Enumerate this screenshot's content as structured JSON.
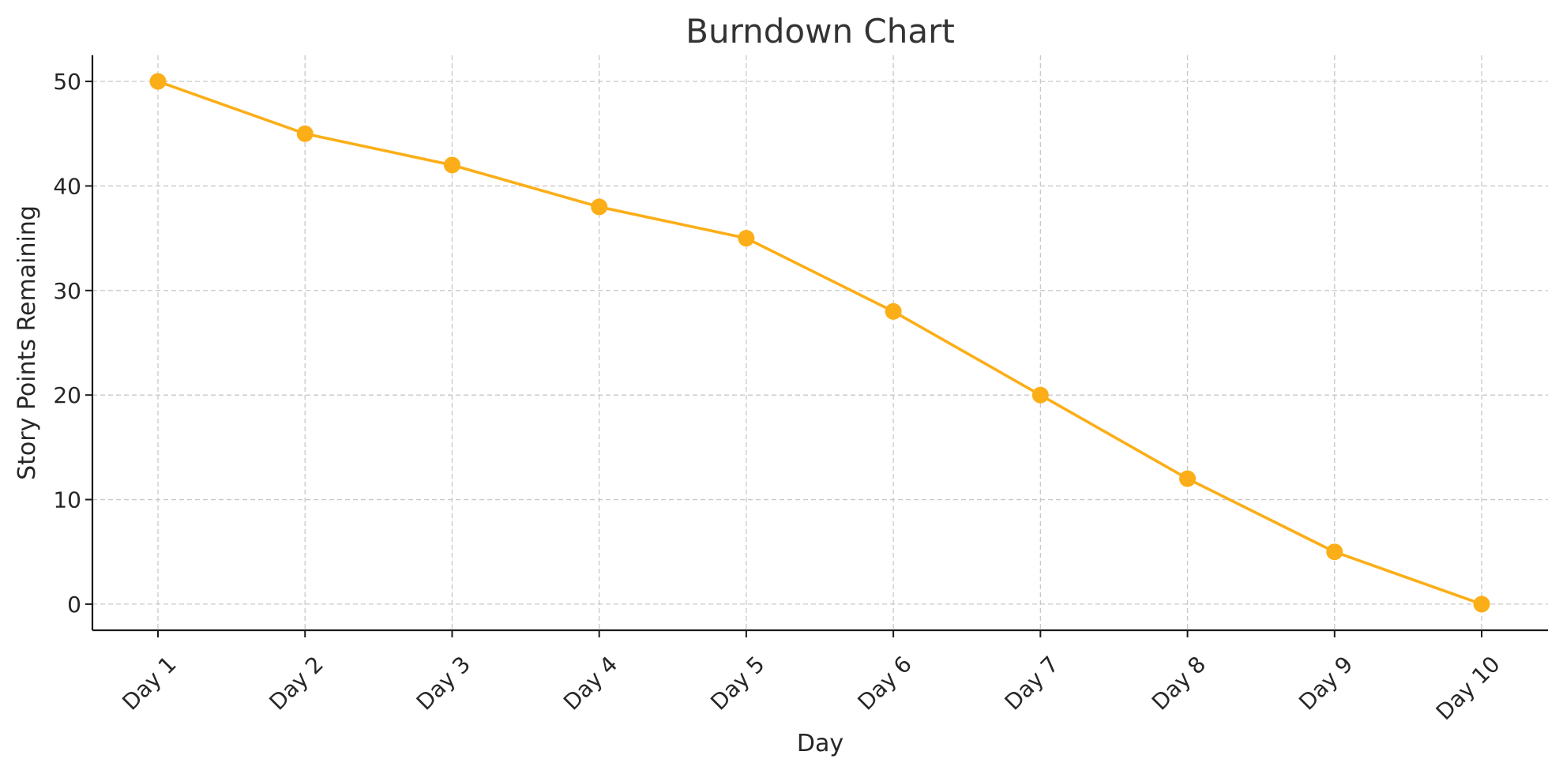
{
  "chart_data": {
    "type": "line",
    "title": "Burndown Chart",
    "xlabel": "Day",
    "ylabel": "Story Points Remaining",
    "categories": [
      "Day 1",
      "Day 2",
      "Day 3",
      "Day 4",
      "Day 5",
      "Day 6",
      "Day 7",
      "Day 8",
      "Day 9",
      "Day 10"
    ],
    "series": [
      {
        "values": [
          50,
          45,
          42,
          38,
          35,
          28,
          20,
          12,
          5,
          0
        ],
        "color": "#FBAE17",
        "marker": "circle"
      }
    ],
    "ylim": [
      -2.5,
      52.5
    ],
    "yticks": [
      0,
      10,
      20,
      30,
      40,
      50
    ],
    "grid": true,
    "legend": "none"
  }
}
